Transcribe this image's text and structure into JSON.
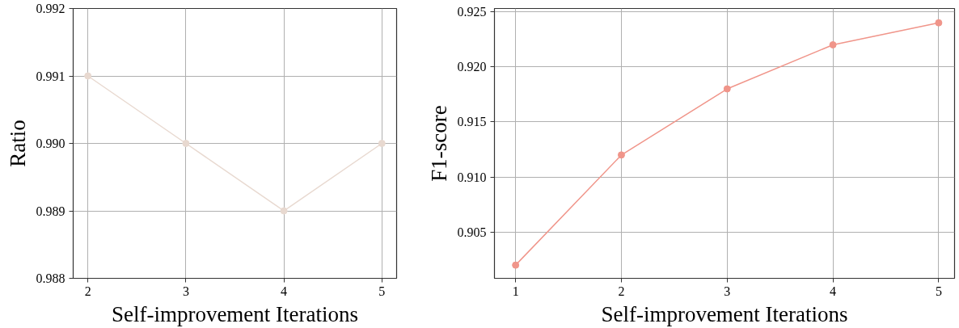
{
  "chart_data": [
    {
      "type": "line",
      "xlabel": "Self-improvement Iterations",
      "ylabel": "Ratio",
      "x": [
        2,
        3,
        4,
        5
      ],
      "xlim": [
        1.85,
        5.15
      ],
      "xticks": [
        2,
        3,
        4,
        5
      ],
      "ylim": [
        0.988,
        0.992
      ],
      "yticks": [
        {
          "value": 0.988,
          "label": "0.988"
        },
        {
          "value": 0.989,
          "label": "0.989"
        },
        {
          "value": 0.99,
          "label": "0.990"
        },
        {
          "value": 0.991,
          "label": "0.991"
        },
        {
          "value": 0.992,
          "label": "0.992"
        }
      ],
      "grid": true,
      "marker": "circle",
      "line_style": "solid",
      "series": [
        {
          "color": "#e8d9d0",
          "values": [
            0.991,
            0.99,
            0.989,
            0.99
          ]
        }
      ]
    },
    {
      "type": "line",
      "xlabel": "Self-improvement Iterations",
      "ylabel": "F1-score",
      "x": [
        1,
        2,
        3,
        4,
        5
      ],
      "xlim": [
        0.8,
        5.15
      ],
      "xticks": [
        1,
        2,
        3,
        4,
        5
      ],
      "ylim": [
        0.9008,
        0.9253
      ],
      "yticks": [
        {
          "value": 0.905,
          "label": "0.905"
        },
        {
          "value": 0.91,
          "label": "0.910"
        },
        {
          "value": 0.915,
          "label": "0.915"
        },
        {
          "value": 0.92,
          "label": "0.920"
        },
        {
          "value": 0.925,
          "label": "0.925"
        }
      ],
      "grid": true,
      "marker": "circle",
      "line_style": "solid",
      "series": [
        {
          "color": "#f0958a",
          "values": [
            0.902,
            0.912,
            0.918,
            0.922,
            0.924
          ]
        }
      ]
    }
  ]
}
